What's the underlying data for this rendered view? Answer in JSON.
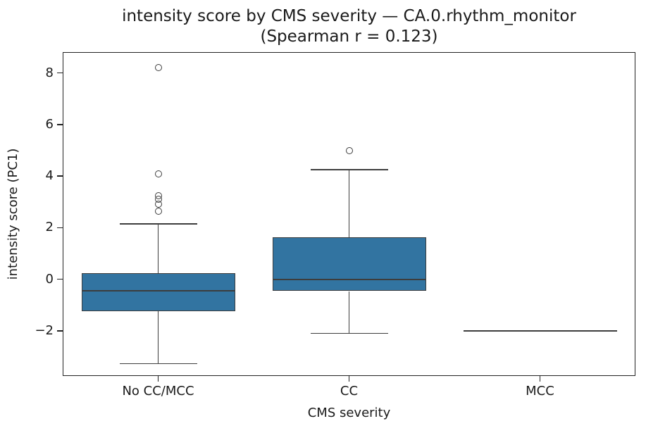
{
  "chart_data": {
    "type": "boxplot",
    "title": "intensity score by CMS severity — CA.0.rhythm_monitor",
    "subtitle": "(Spearman r = 0.123)",
    "xlabel": "CMS severity",
    "ylabel": "intensity score (PC1)",
    "categories": [
      "No CC/MCC",
      "CC",
      "MCC"
    ],
    "yticks": [
      8,
      6,
      4,
      2,
      0,
      -2
    ],
    "ylim": [
      -3.75,
      8.81
    ],
    "grid": false,
    "legend": "none",
    "series": [
      {
        "category": "No CC/MCC",
        "whisker_low": -3.27,
        "q1": -1.25,
        "median": -0.44,
        "q3": 0.2,
        "whisker_high": 2.15,
        "outliers": [
          2.65,
          2.9,
          3.1,
          3.25,
          4.1,
          8.2
        ]
      },
      {
        "category": "CC",
        "whisker_low": -2.1,
        "q1": -0.47,
        "median": -0.02,
        "q3": 1.6,
        "whisker_high": 4.25,
        "outliers": [
          5.0
        ]
      },
      {
        "category": "MCC",
        "whisker_low": -2.0,
        "q1": -2.0,
        "median": -2.0,
        "q3": -2.0,
        "whisker_high": -2.0,
        "outliers": []
      }
    ],
    "colors": {
      "box_fill": "#3274a1",
      "box_edge": "#3d3d3d",
      "axis": "#222222",
      "text": "#1a1a1a"
    }
  }
}
